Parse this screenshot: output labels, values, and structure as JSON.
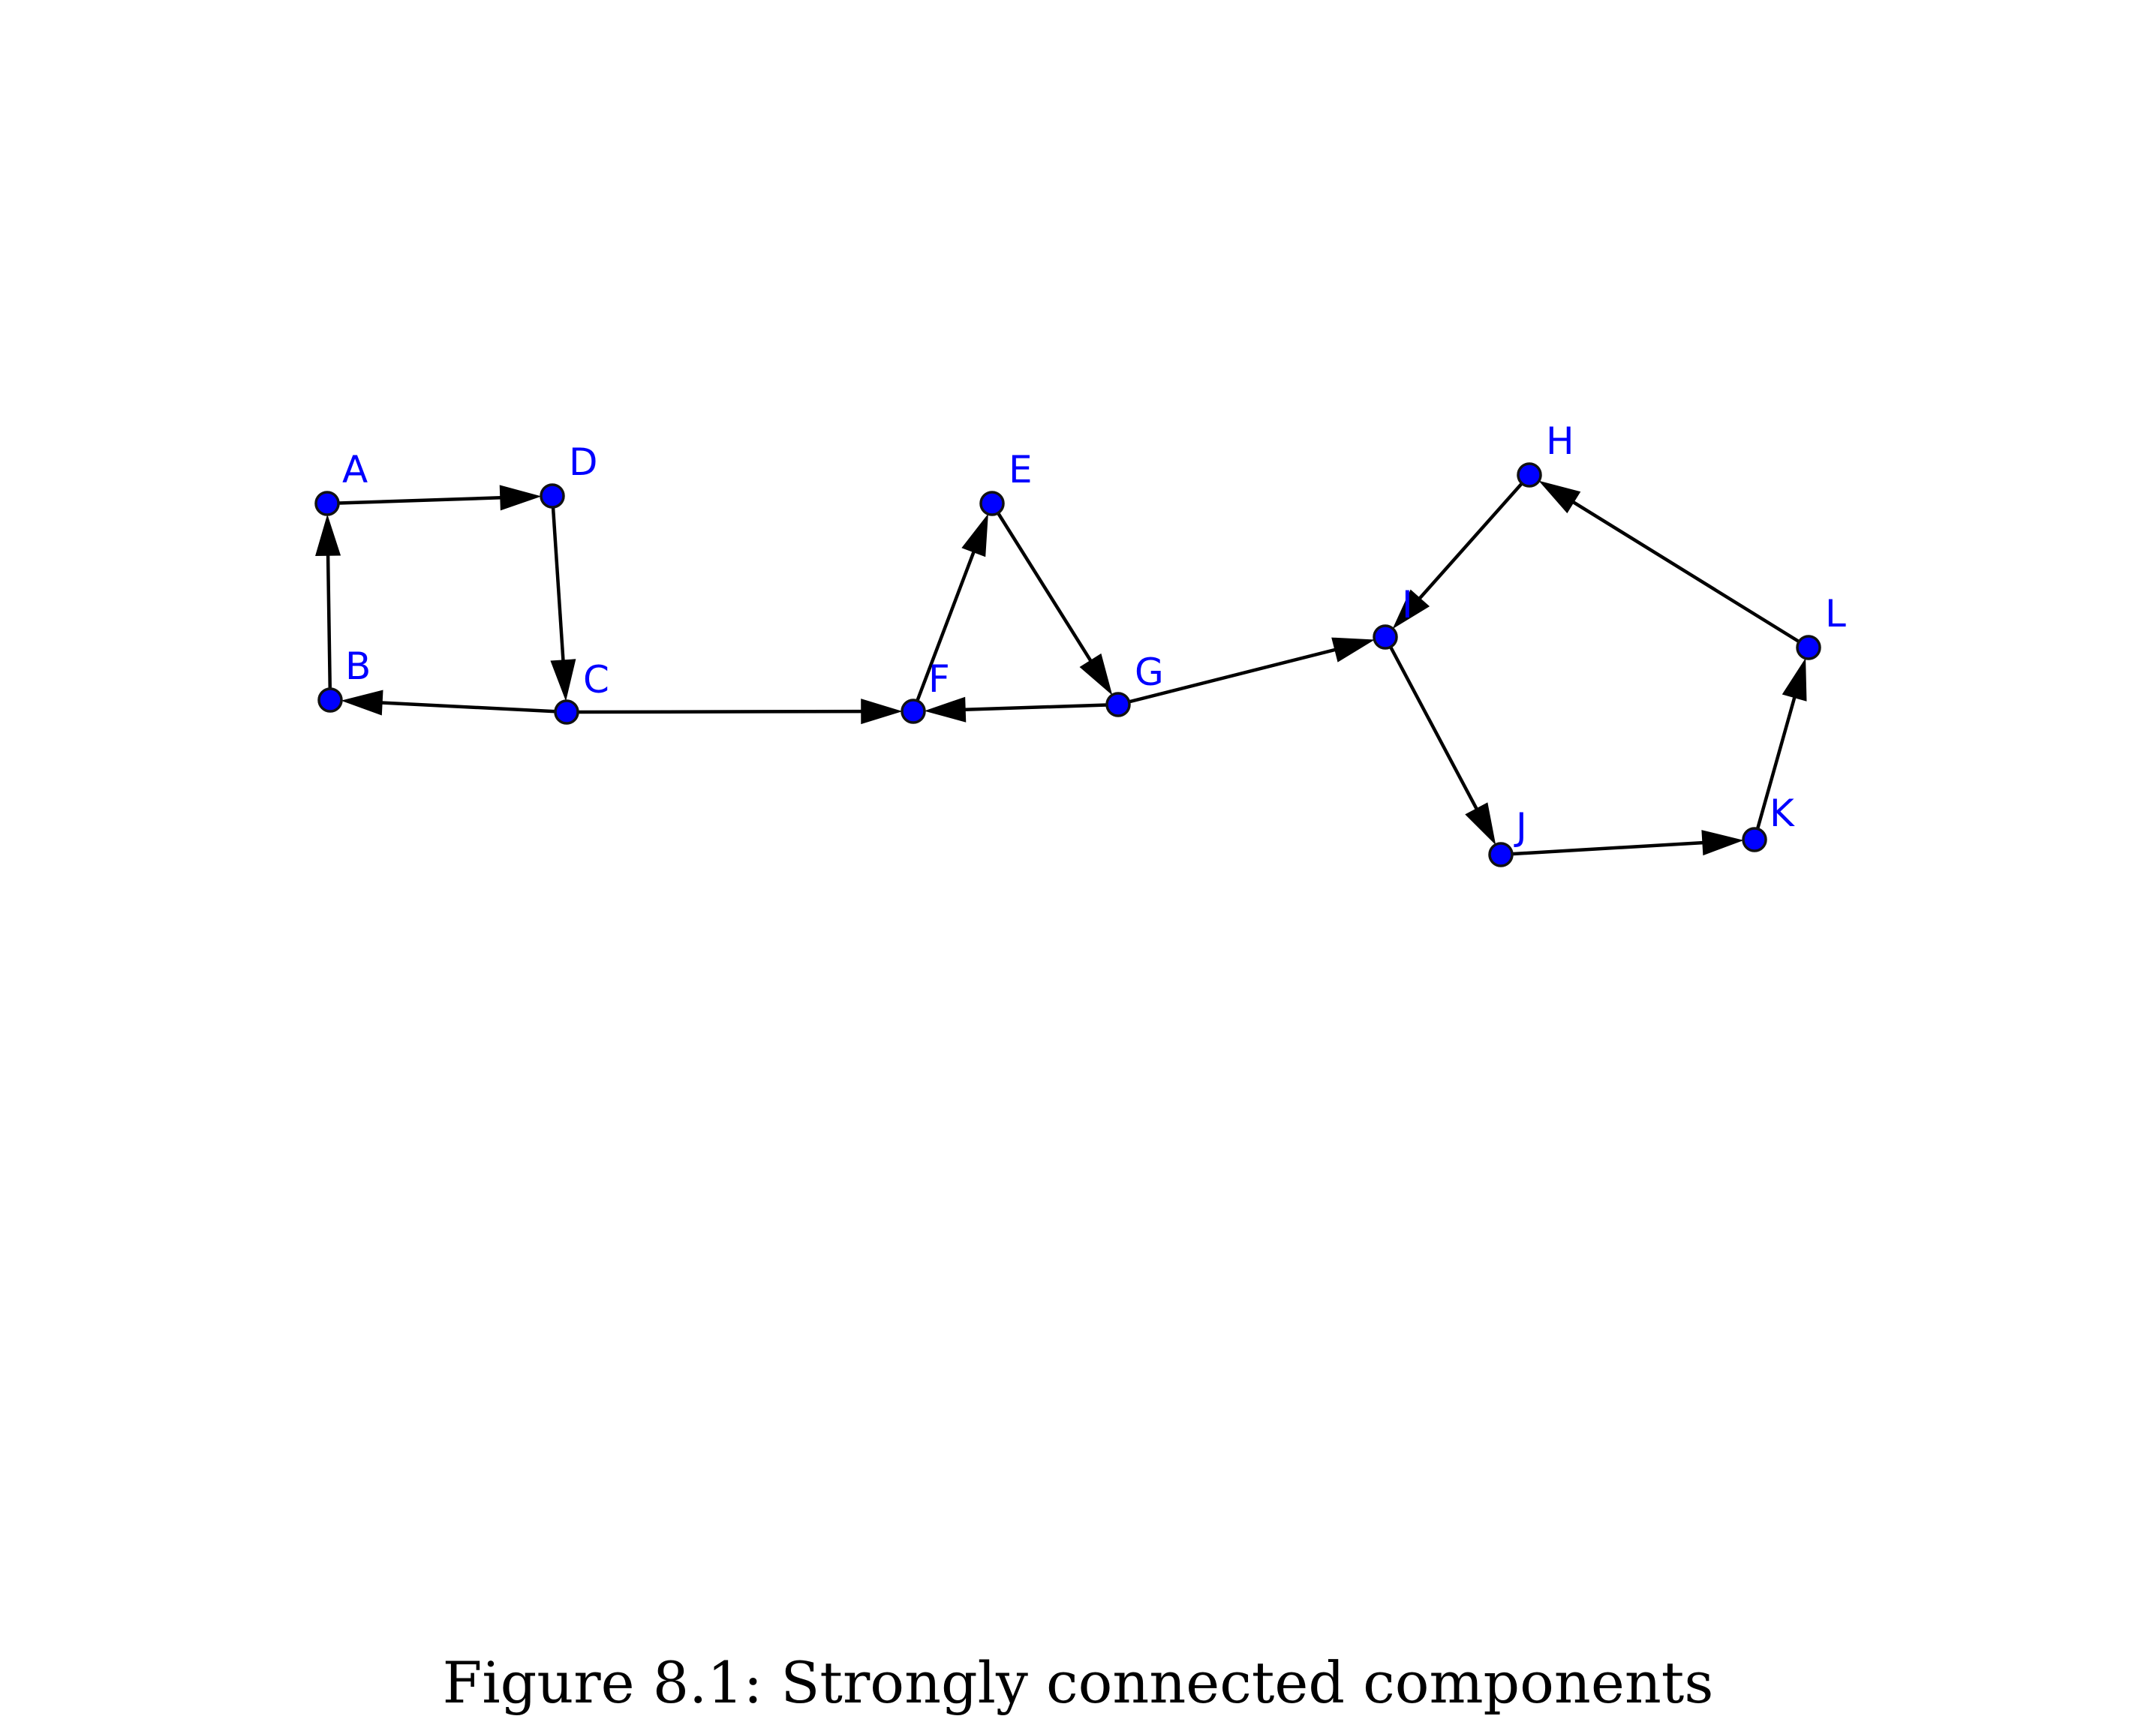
{
  "figure": {
    "caption": "Figure 8.1: Strongly connected components"
  },
  "graph": {
    "directed": true,
    "node_color": "#0000ff",
    "label_color": "#0000ff",
    "edge_color": "#000000",
    "nodes": [
      {
        "id": "A",
        "label": "A"
      },
      {
        "id": "B",
        "label": "B"
      },
      {
        "id": "C",
        "label": "C"
      },
      {
        "id": "D",
        "label": "D"
      },
      {
        "id": "E",
        "label": "E"
      },
      {
        "id": "F",
        "label": "F"
      },
      {
        "id": "G",
        "label": "G"
      },
      {
        "id": "H",
        "label": "H"
      },
      {
        "id": "I",
        "label": "I"
      },
      {
        "id": "J",
        "label": "J"
      },
      {
        "id": "K",
        "label": "K"
      },
      {
        "id": "L",
        "label": "L"
      }
    ],
    "edges": [
      {
        "from": "A",
        "to": "D"
      },
      {
        "from": "D",
        "to": "C"
      },
      {
        "from": "C",
        "to": "B"
      },
      {
        "from": "B",
        "to": "A"
      },
      {
        "from": "C",
        "to": "F"
      },
      {
        "from": "F",
        "to": "E"
      },
      {
        "from": "E",
        "to": "G"
      },
      {
        "from": "G",
        "to": "F"
      },
      {
        "from": "G",
        "to": "I"
      },
      {
        "from": "H",
        "to": "I"
      },
      {
        "from": "I",
        "to": "J"
      },
      {
        "from": "J",
        "to": "K"
      },
      {
        "from": "K",
        "to": "L"
      },
      {
        "from": "L",
        "to": "H"
      }
    ]
  }
}
